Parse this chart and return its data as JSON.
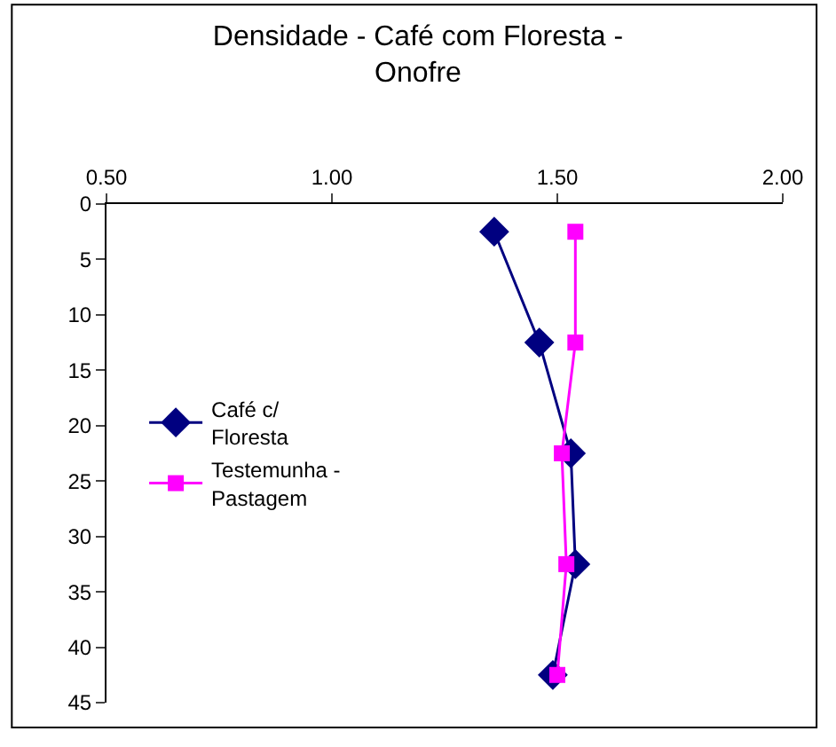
{
  "chart_data": {
    "type": "line",
    "title": "Densidade - Café com Floresta -\nOnofre",
    "series": [
      {
        "name": "Café c/\nFloresta",
        "color": "#000080",
        "marker": "diamond",
        "x": [
          1.36,
          1.46,
          1.53,
          1.54,
          1.49
        ],
        "values": [
          2.5,
          12.5,
          22.5,
          32.5,
          42.5
        ]
      },
      {
        "name": "Testemunha -\nPastagem",
        "color": "#ff00ff",
        "marker": "square",
        "x": [
          1.54,
          1.54,
          1.51,
          1.52,
          1.5
        ],
        "values": [
          2.5,
          12.5,
          22.5,
          32.5,
          42.5
        ]
      }
    ],
    "xlim": [
      0.5,
      2.0
    ],
    "xticks": [
      {
        "value": 0.5,
        "label": "0.50"
      },
      {
        "value": 1.0,
        "label": "1.00"
      },
      {
        "value": 1.5,
        "label": "1.50"
      },
      {
        "value": 2.0,
        "label": "2.00"
      }
    ],
    "ylim": [
      45,
      0
    ],
    "yticks": [
      0,
      5,
      10,
      15,
      20,
      25,
      30,
      35,
      40,
      45
    ],
    "legend": "left"
  }
}
